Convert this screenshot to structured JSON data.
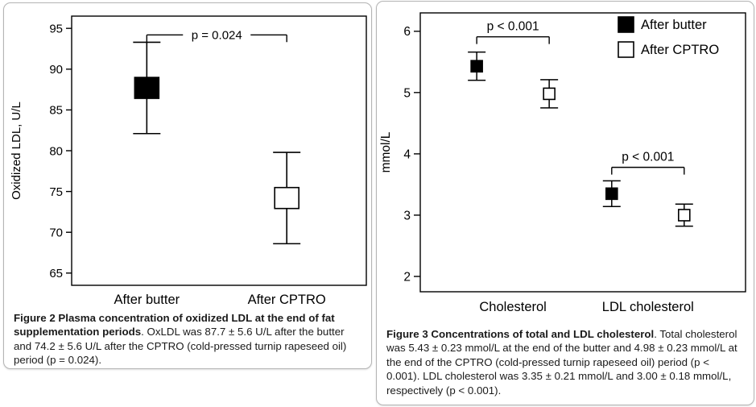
{
  "figure2": {
    "caption_title": "Figure 2 Plasma concentration of oxidized LDL at the end of fat supplementation periods",
    "caption_rest": ". OxLDL was 87.7 ± 5.6 U/L after the butter and 74.2 ± 5.6 U/L after the CPTRO (cold-pressed turnip rapeseed oil) period (p = 0.024)."
  },
  "figure3": {
    "caption_title": "Figure 3 Concentrations of total and LDL cholesterol",
    "caption_rest": ". Total cholesterol was 5.43 ± 0.23 mmol/L at the end of the butter and 4.98 ± 0.23 mmol/L at the end of the CPTRO (cold-pressed turnip rapeseed oil) period (p < 0.001). LDL cholesterol was 3.35 ± 0.21 mmol/L and 3.00 ± 0.18 mmol/L, respectively (p < 0.001)."
  },
  "chart_data": [
    {
      "id": "chart2",
      "type": "scatter",
      "title": "",
      "xlabel": "",
      "ylabel": "Oxidized LDL, U/L",
      "ylim": [
        63.5,
        96.5
      ],
      "yticks": [
        65,
        70,
        75,
        80,
        85,
        90,
        95
      ],
      "grid": false,
      "categories": [
        "After butter",
        "After CPTRO"
      ],
      "series": [
        {
          "name": "Oxidized LDL",
          "values": [
            87.7,
            74.2
          ],
          "sd": [
            5.6,
            5.6
          ],
          "markers": [
            "filled",
            "open"
          ]
        }
      ],
      "annotations": [
        {
          "label": "p = 0.024",
          "between_categories": [
            0,
            1
          ],
          "y": 94.2,
          "label_pos": "on_line"
        }
      ],
      "marker_colors": {
        "filled": "#000000",
        "open": "#ffffff"
      }
    },
    {
      "id": "chart3",
      "type": "scatter",
      "title": "",
      "xlabel": "",
      "ylabel": "mmol/L",
      "ylim": [
        1.75,
        6.3
      ],
      "yticks": [
        2,
        3,
        4,
        5,
        6
      ],
      "grid": false,
      "categories": [
        "Cholesterol",
        "LDL cholesterol"
      ],
      "series": [
        {
          "name": "After butter",
          "marker": "filled",
          "values": [
            5.43,
            3.35
          ],
          "sd": [
            0.23,
            0.21
          ]
        },
        {
          "name": "After CPTRO",
          "marker": "open",
          "values": [
            4.98,
            3.0
          ],
          "sd": [
            0.23,
            0.18
          ]
        }
      ],
      "annotations": [
        {
          "label": "p < 0.001",
          "within_category": 0,
          "y": 5.91,
          "label_pos": "above"
        },
        {
          "label": "p < 0.001",
          "within_category": 1,
          "y": 3.78,
          "label_pos": "above"
        }
      ],
      "legend": {
        "position": "top-right",
        "items": [
          {
            "label": "After butter",
            "marker": "filled"
          },
          {
            "label": "After CPTRO",
            "marker": "open"
          }
        ]
      },
      "marker_colors": {
        "filled": "#000000",
        "open": "#ffffff"
      }
    }
  ]
}
